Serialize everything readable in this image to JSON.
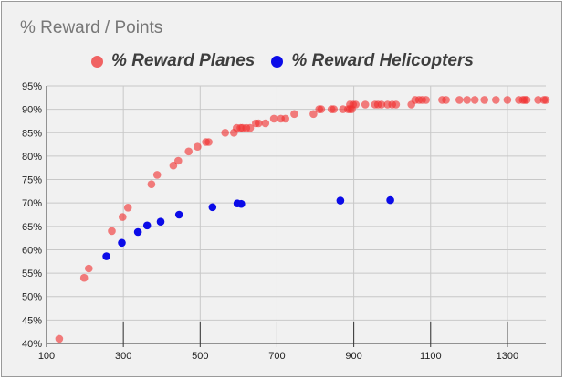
{
  "chart_data": {
    "type": "scatter",
    "title": "% Reward / Points",
    "xlabel": "",
    "ylabel": "",
    "xlim": [
      100,
      1400
    ],
    "ylim": [
      0.4,
      0.95
    ],
    "x_ticks": [
      100,
      300,
      500,
      700,
      900,
      1100,
      1300
    ],
    "x_tick_labels": [
      "100",
      "300",
      "500",
      "700",
      "900",
      "1100",
      "1300"
    ],
    "y_ticks": [
      0.4,
      0.45,
      0.5,
      0.55,
      0.6,
      0.65,
      0.7,
      0.75,
      0.8,
      0.85,
      0.9,
      0.95
    ],
    "y_tick_labels": [
      "40%",
      "45%",
      "50%",
      "55%",
      "60%",
      "65%",
      "70%",
      "75%",
      "80%",
      "85%",
      "90%",
      "95%"
    ],
    "grid": true,
    "legend_position": "top",
    "series": [
      {
        "name": "% Reward Planes",
        "color": "#f03030",
        "points": [
          [
            133,
            0.41
          ],
          [
            198,
            0.54
          ],
          [
            210,
            0.56
          ],
          [
            270,
            0.64
          ],
          [
            298,
            0.67
          ],
          [
            312,
            0.69
          ],
          [
            373,
            0.74
          ],
          [
            388,
            0.76
          ],
          [
            430,
            0.78
          ],
          [
            443,
            0.79
          ],
          [
            470,
            0.81
          ],
          [
            493,
            0.82
          ],
          [
            515,
            0.83
          ],
          [
            522,
            0.83
          ],
          [
            565,
            0.85
          ],
          [
            588,
            0.85
          ],
          [
            595,
            0.86
          ],
          [
            605,
            0.86
          ],
          [
            610,
            0.86
          ],
          [
            620,
            0.86
          ],
          [
            630,
            0.86
          ],
          [
            645,
            0.87
          ],
          [
            652,
            0.87
          ],
          [
            670,
            0.87
          ],
          [
            692,
            0.88
          ],
          [
            710,
            0.88
          ],
          [
            722,
            0.88
          ],
          [
            745,
            0.89
          ],
          [
            795,
            0.89
          ],
          [
            810,
            0.9
          ],
          [
            815,
            0.9
          ],
          [
            842,
            0.9
          ],
          [
            848,
            0.9
          ],
          [
            872,
            0.9
          ],
          [
            885,
            0.9
          ],
          [
            890,
            0.9
          ],
          [
            895,
            0.9
          ],
          [
            890,
            0.91
          ],
          [
            898,
            0.91
          ],
          [
            905,
            0.91
          ],
          [
            930,
            0.91
          ],
          [
            955,
            0.91
          ],
          [
            963,
            0.91
          ],
          [
            972,
            0.91
          ],
          [
            988,
            0.91
          ],
          [
            1000,
            0.91
          ],
          [
            1010,
            0.91
          ],
          [
            1050,
            0.91
          ],
          [
            1060,
            0.92
          ],
          [
            1070,
            0.92
          ],
          [
            1078,
            0.92
          ],
          [
            1088,
            0.92
          ],
          [
            1130,
            0.92
          ],
          [
            1140,
            0.92
          ],
          [
            1175,
            0.92
          ],
          [
            1195,
            0.92
          ],
          [
            1215,
            0.92
          ],
          [
            1240,
            0.92
          ],
          [
            1270,
            0.92
          ],
          [
            1300,
            0.92
          ],
          [
            1330,
            0.92
          ],
          [
            1340,
            0.92
          ],
          [
            1345,
            0.92
          ],
          [
            1350,
            0.92
          ],
          [
            1380,
            0.92
          ],
          [
            1395,
            0.92
          ],
          [
            1400,
            0.92
          ]
        ]
      },
      {
        "name": "% Reward Helicopters",
        "color": "#0b0be8",
        "points": [
          [
            256,
            0.586
          ],
          [
            296,
            0.615
          ],
          [
            338,
            0.638
          ],
          [
            362,
            0.652
          ],
          [
            397,
            0.66
          ],
          [
            445,
            0.675
          ],
          [
            532,
            0.691
          ],
          [
            597,
            0.699
          ],
          [
            607,
            0.698
          ],
          [
            865,
            0.705
          ],
          [
            995,
            0.706
          ]
        ]
      }
    ]
  }
}
